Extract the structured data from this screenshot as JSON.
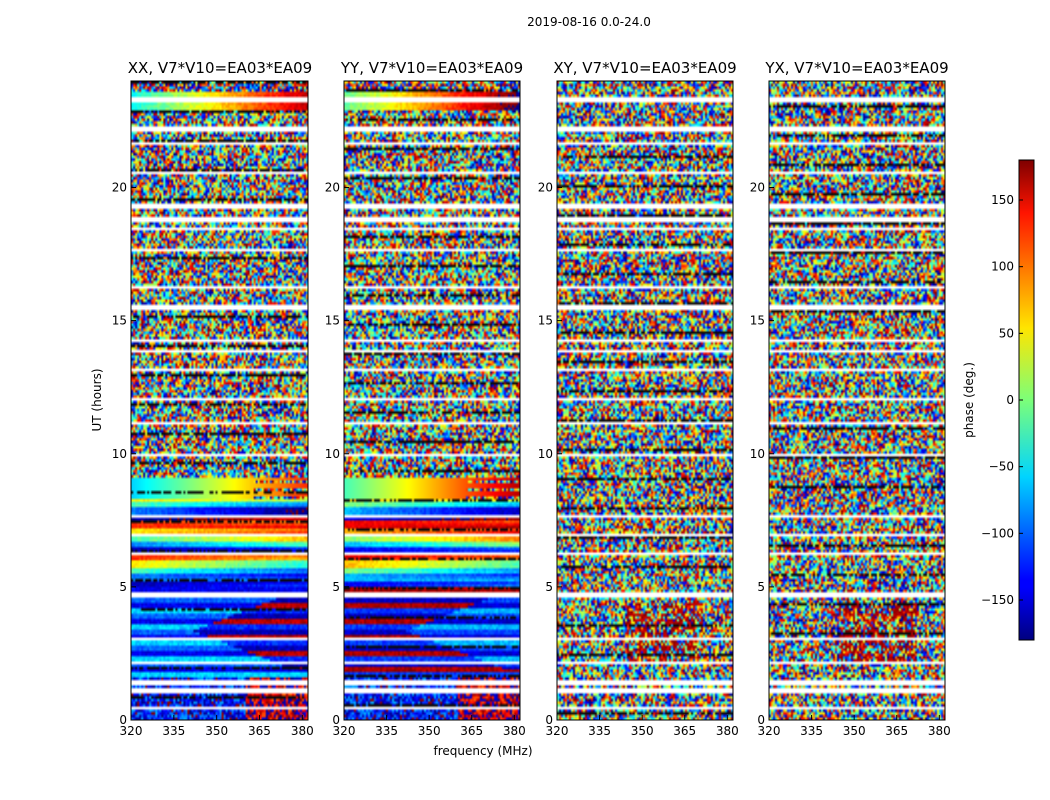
{
  "chart_data": {
    "type": "heatmap",
    "title": "2019-08-16 0.0-24.0",
    "xlabel": "frequency (MHz)",
    "ylabel": "UT (hours)",
    "xlim": [
      320,
      382
    ],
    "ylim": [
      0,
      24
    ],
    "x_ticks": [
      "320",
      "335",
      "350",
      "365",
      "380"
    ],
    "y_ticks": [
      "0",
      "5",
      "10",
      "15",
      "20"
    ],
    "panels": [
      {
        "title": "XX, V7*V10=EA03*EA09",
        "coherent": true
      },
      {
        "title": "YY, V7*V10=EA03*EA09",
        "coherent": true
      },
      {
        "title": "XY, V7*V10=EA03*EA09",
        "coherent": false
      },
      {
        "title": "YX, V7*V10=EA03*EA09",
        "coherent": false
      }
    ],
    "colorbar": {
      "label": "phase (deg.)",
      "range": [
        -180,
        180
      ],
      "ticks": [
        "150",
        "100",
        "50",
        "0",
        "−50",
        "−100",
        "−150"
      ],
      "colormap": "jet"
    },
    "flagged_ut_bands": [
      [
        23.2,
        23.4
      ],
      [
        22.1,
        22.25
      ],
      [
        21.6,
        21.7
      ],
      [
        20.5,
        20.6
      ],
      [
        19.2,
        19.35
      ],
      [
        18.75,
        18.85
      ],
      [
        18.4,
        18.5
      ],
      [
        17.6,
        17.7
      ],
      [
        16.2,
        16.3
      ],
      [
        15.45,
        15.6
      ],
      [
        14.2,
        14.3
      ],
      [
        13.8,
        13.85
      ],
      [
        13.1,
        13.2
      ],
      [
        12.0,
        12.1
      ],
      [
        11.1,
        11.2
      ],
      [
        9.9,
        10.0
      ],
      [
        8.55,
        8.65
      ],
      [
        7.6,
        7.7
      ],
      [
        6.9,
        7.0
      ],
      [
        6.2,
        6.3
      ],
      [
        4.6,
        4.75
      ],
      [
        3.0,
        3.1
      ],
      [
        2.1,
        2.2
      ],
      [
        1.35,
        1.45
      ],
      [
        1.0,
        1.2
      ],
      [
        0.4,
        0.5
      ]
    ]
  }
}
